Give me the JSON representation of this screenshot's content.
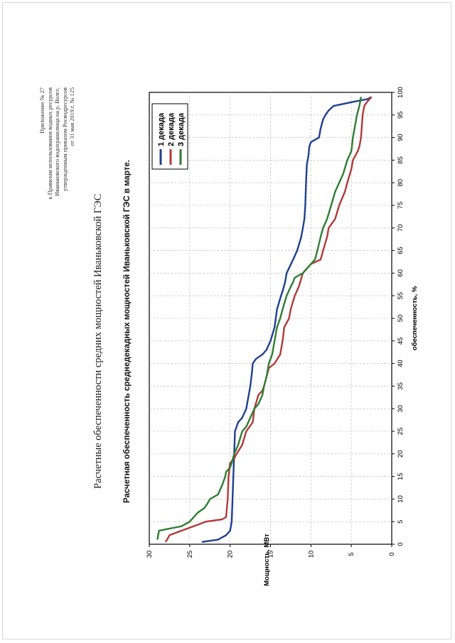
{
  "header": {
    "lines": [
      "Приложение № 27",
      "к Правилам использования водных ресурсов",
      "Иваньковского водохранилища на р. Волге,",
      "утвержденным приказом Росводресурсов",
      "от 31 мая 2019 г. № 125"
    ]
  },
  "main_title": "Расчетные обеспеченности средних мощностей Иваньковской ГЭС",
  "chart_data": {
    "type": "line",
    "title": "Расчетная обеспеченность среднедекадных мощностей Иваньковской ГЭС в марте.",
    "xlabel": "обеспеченность, %",
    "ylabel": "Мощность, МВт",
    "xlim": [
      0,
      100
    ],
    "ylim": [
      0,
      30
    ],
    "x_ticks": [
      "0",
      "5",
      "10",
      "15",
      "20",
      "25",
      "30",
      "35",
      "40",
      "45",
      "50",
      "55",
      "60",
      "65",
      "70",
      "75",
      "80",
      "85",
      "90",
      "95",
      "100"
    ],
    "y_ticks": [
      "0",
      "5",
      "10",
      "15",
      "20",
      "25",
      "30"
    ],
    "grid": true,
    "legend_position": "top-right",
    "series": [
      {
        "name": "1 декада",
        "color": "#1f3f8f",
        "points": [
          [
            0.5,
            23.5
          ],
          [
            1,
            21.5
          ],
          [
            2,
            20.5
          ],
          [
            3,
            20
          ],
          [
            5,
            19.8
          ],
          [
            10,
            19.7
          ],
          [
            15,
            19.6
          ],
          [
            20,
            19.5
          ],
          [
            25,
            19.4
          ],
          [
            27,
            19
          ],
          [
            28,
            18.5
          ],
          [
            30,
            18
          ],
          [
            35,
            17.5
          ],
          [
            38,
            17.3
          ],
          [
            40,
            17.2
          ],
          [
            41,
            16.8
          ],
          [
            42,
            16
          ],
          [
            43,
            15.5
          ],
          [
            45,
            15
          ],
          [
            48,
            14.5
          ],
          [
            52,
            14.2
          ],
          [
            55,
            13.7
          ],
          [
            56,
            13.5
          ],
          [
            58,
            13.2
          ],
          [
            60,
            13
          ],
          [
            63,
            12.2
          ],
          [
            65,
            11.7
          ],
          [
            68,
            11.2
          ],
          [
            70,
            11
          ],
          [
            72,
            10.8
          ],
          [
            75,
            10.7
          ],
          [
            80,
            10.6
          ],
          [
            84,
            10.5
          ],
          [
            86,
            10.3
          ],
          [
            88,
            10.2
          ],
          [
            89,
            10
          ],
          [
            90,
            9
          ],
          [
            92,
            8.8
          ],
          [
            94,
            8.5
          ],
          [
            95,
            8.2
          ],
          [
            96,
            7.8
          ],
          [
            97,
            7.2
          ],
          [
            98,
            4.5
          ],
          [
            98.5,
            3
          ],
          [
            99,
            2.5
          ]
        ]
      },
      {
        "name": "2 декада",
        "color": "#b03a3a",
        "points": [
          [
            0.5,
            28
          ],
          [
            1,
            27.8
          ],
          [
            2,
            27.5
          ],
          [
            3,
            26
          ],
          [
            4,
            24.5
          ],
          [
            5,
            23
          ],
          [
            5.5,
            21
          ],
          [
            6,
            20.5
          ],
          [
            10,
            20.3
          ],
          [
            15,
            20.2
          ],
          [
            18,
            20
          ],
          [
            19,
            19.5
          ],
          [
            20,
            19.2
          ],
          [
            22,
            18.5
          ],
          [
            25,
            18
          ],
          [
            27,
            17.2
          ],
          [
            30,
            17
          ],
          [
            33,
            16.5
          ],
          [
            34,
            16
          ],
          [
            35,
            15.8
          ],
          [
            37,
            15.5
          ],
          [
            39,
            15.2
          ],
          [
            40,
            14.5
          ],
          [
            42,
            13.8
          ],
          [
            45,
            13.5
          ],
          [
            48,
            13.3
          ],
          [
            50,
            12.7
          ],
          [
            52,
            12.5
          ],
          [
            55,
            12
          ],
          [
            57,
            11.5
          ],
          [
            60,
            11
          ],
          [
            61,
            10.5
          ],
          [
            62,
            10
          ],
          [
            63,
            8.8
          ],
          [
            65,
            8.5
          ],
          [
            68,
            8
          ],
          [
            70,
            7.8
          ],
          [
            72,
            7
          ],
          [
            75,
            6.5
          ],
          [
            78,
            5.8
          ],
          [
            80,
            5.5
          ],
          [
            83,
            5
          ],
          [
            85,
            4.8
          ],
          [
            87,
            4.2
          ],
          [
            88,
            4
          ],
          [
            90,
            3.8
          ],
          [
            95,
            3.6
          ],
          [
            97,
            3.4
          ],
          [
            98,
            3
          ],
          [
            99,
            2.5
          ]
        ]
      },
      {
        "name": "3 декада",
        "color": "#2f7d34",
        "points": [
          [
            1,
            29
          ],
          [
            3,
            28.8
          ],
          [
            4,
            26
          ],
          [
            5,
            25
          ],
          [
            6,
            24.5
          ],
          [
            7,
            24
          ],
          [
            8,
            23.2
          ],
          [
            9,
            22.8
          ],
          [
            10,
            22.5
          ],
          [
            11,
            21.5
          ],
          [
            13,
            21
          ],
          [
            14,
            20.8
          ],
          [
            15,
            20.6
          ],
          [
            16,
            20.5
          ],
          [
            17,
            20
          ],
          [
            18,
            19.8
          ],
          [
            20,
            19.5
          ],
          [
            22,
            19
          ],
          [
            25,
            18.5
          ],
          [
            26,
            18
          ],
          [
            28,
            17.5
          ],
          [
            30,
            17
          ],
          [
            31,
            16.5
          ],
          [
            33,
            16
          ],
          [
            35,
            15.8
          ],
          [
            37,
            15.5
          ],
          [
            40,
            15.2
          ],
          [
            42,
            14.8
          ],
          [
            45,
            14.5
          ],
          [
            48,
            14.2
          ],
          [
            50,
            13.8
          ],
          [
            52,
            13.5
          ],
          [
            55,
            13
          ],
          [
            57,
            12.5
          ],
          [
            58,
            12.2
          ],
          [
            59,
            12
          ],
          [
            60,
            11
          ],
          [
            62,
            10
          ],
          [
            63,
            9.5
          ],
          [
            65,
            9.2
          ],
          [
            68,
            8.8
          ],
          [
            70,
            8.5
          ],
          [
            72,
            8
          ],
          [
            75,
            7.5
          ],
          [
            78,
            7
          ],
          [
            80,
            6.5
          ],
          [
            82,
            6
          ],
          [
            85,
            5.5
          ],
          [
            87,
            5
          ],
          [
            90,
            4.8
          ],
          [
            95,
            4.3
          ],
          [
            97,
            4
          ],
          [
            99,
            3.8
          ]
        ]
      }
    ]
  }
}
